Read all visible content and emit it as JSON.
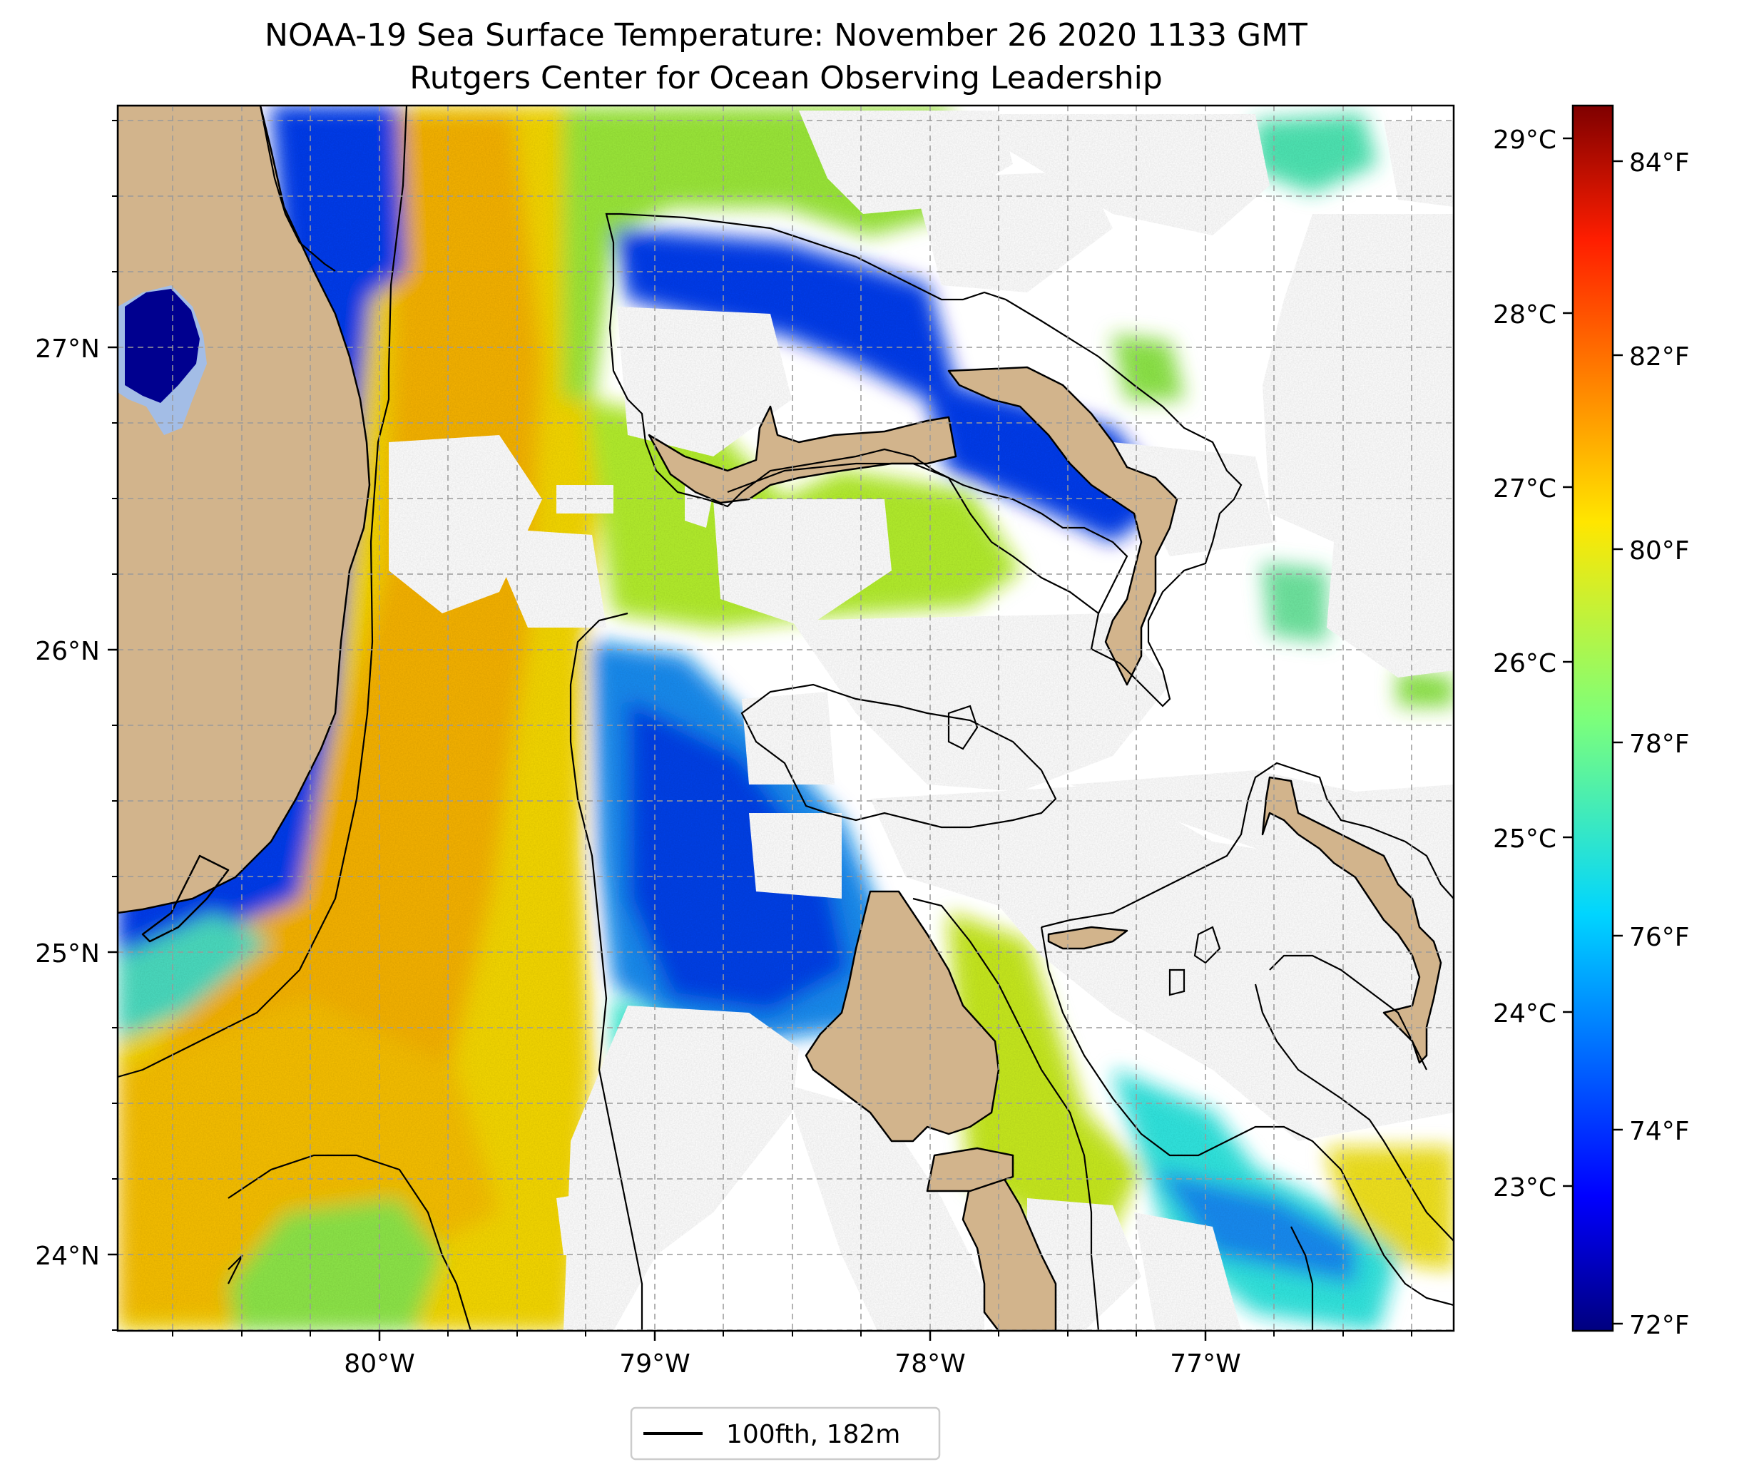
{
  "title": {
    "line1": "NOAA-19 Sea Surface Temperature: November 26 2020 1133 GMT",
    "line2": "Rutgers Center for Ocean Observing Leadership"
  },
  "map": {
    "lon_range": [
      -80.95,
      -76.08
    ],
    "lat_range": [
      23.75,
      27.8
    ],
    "lat_ticks": [
      "24°N",
      "25°N",
      "26°N",
      "27°N"
    ],
    "lon_ticks": [
      "80°W",
      "79°W",
      "78°W",
      "77°W"
    ],
    "grid": "dashed",
    "colors": {
      "land": "#d2b48c",
      "warm_stream": "#f5d800",
      "warm_core": "#f6b300",
      "green_water": "#9be83a",
      "cyan_water": "#30ecd0",
      "light_blue": "#1f8cf0",
      "blue_water": "#0a3dec",
      "dark_blue": "#0000a8",
      "lake": "#a3bde6",
      "cloud_mask": "#ffffff",
      "isobath": "#000000"
    }
  },
  "colorbar": {
    "celsius_ticks": [
      "23°C",
      "24°C",
      "25°C",
      "26°C",
      "27°C",
      "28°C",
      "29°C"
    ],
    "fahrenheit_ticks": [
      "72°F",
      "74°F",
      "76°F",
      "78°F",
      "80°F",
      "82°F",
      "84°F"
    ],
    "range_f": [
      71.9,
      85.2
    ],
    "colormap": "jet"
  },
  "legend": {
    "label": "100fth, 182m",
    "location": "bottom-center"
  }
}
